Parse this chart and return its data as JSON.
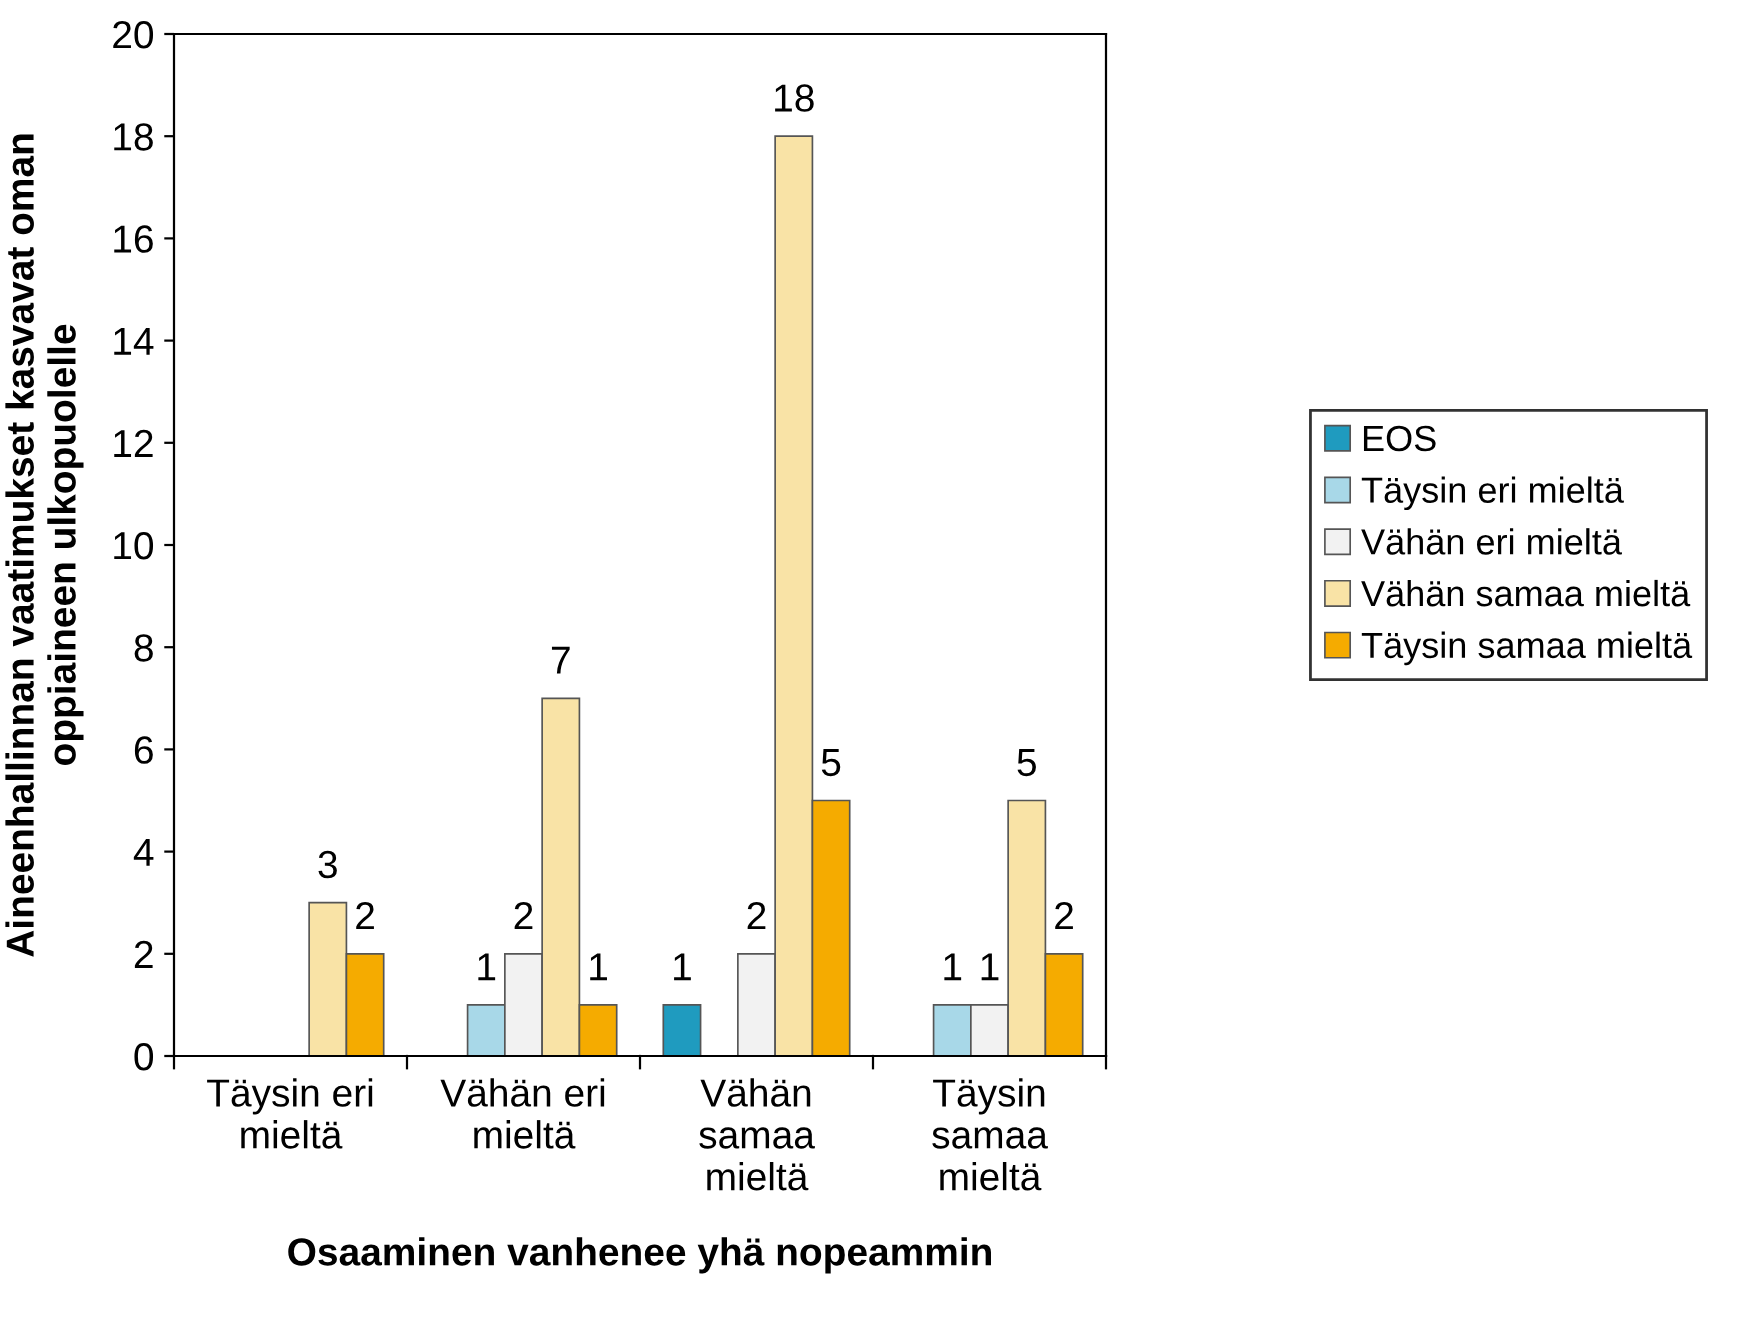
{
  "chart_data": {
    "type": "bar",
    "categories": [
      "Täysin eri\nmieltä",
      "Vähän eri\nmieltä",
      "Vähän\nsamaa\nmieltä",
      "Täysin\nsamaa\nmieltä"
    ],
    "xlabel": "Osaaminen vanhenee yhä nopeammin",
    "ylabel": "Aineenhallinnan vaatimukset kasvavat oman\noppiaineen ulkopuolelle",
    "series": [
      {
        "name": "EOS",
        "color": "#1f9bbf",
        "values": [
          null,
          null,
          1,
          null
        ]
      },
      {
        "name": "Täysin eri mieltä",
        "color": "#a8d8e8",
        "values": [
          null,
          1,
          null,
          1
        ]
      },
      {
        "name": "Vähän eri mieltä",
        "color": "#f2f2f2",
        "values": [
          null,
          2,
          2,
          1
        ]
      },
      {
        "name": "Vähän samaa mieltä",
        "color": "#f9e3a6",
        "values": [
          3,
          7,
          18,
          5
        ]
      },
      {
        "name": "Täysin samaa mieltä",
        "color": "#f5ab00",
        "values": [
          2,
          1,
          5,
          2
        ]
      }
    ],
    "ylim": [
      0,
      20
    ],
    "yticks": [
      0,
      2,
      4,
      6,
      8,
      10,
      12,
      14,
      16,
      18,
      20
    ],
    "grid": false,
    "legend": "right",
    "data_labels": true
  }
}
